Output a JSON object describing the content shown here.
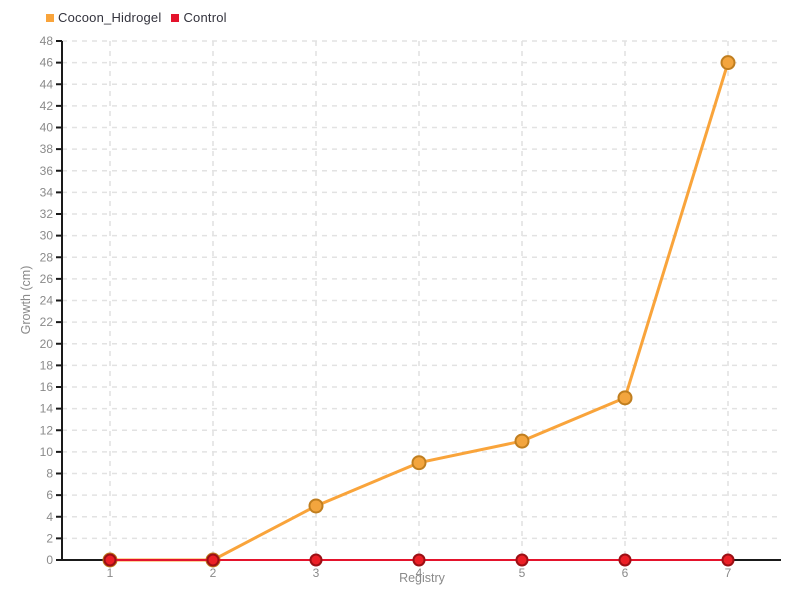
{
  "chart_data": {
    "type": "line",
    "title": "",
    "xlabel": "Registry",
    "ylabel": "Growth (cm)",
    "x": [
      1,
      2,
      3,
      4,
      5,
      6,
      7
    ],
    "xlim": [
      1,
      7
    ],
    "ylim": [
      0,
      48
    ],
    "ytick_step": 2,
    "grid": "dashed",
    "legend_position": "top-left",
    "series": [
      {
        "name": "Cocoon_Hidrogel",
        "values": [
          0,
          0,
          5,
          9,
          11,
          15,
          46
        ],
        "color": "#F9A43B",
        "marker_fill": "#F3A53E",
        "marker_stroke": "#C07E1F"
      },
      {
        "name": "Control",
        "values": [
          0,
          0,
          0,
          0,
          0,
          0,
          0
        ],
        "color": "#E4132C",
        "marker_fill": "#EC1F26",
        "marker_stroke": "#9C0F14"
      }
    ],
    "colors": {
      "axis": "#1a1a1a",
      "grid": "#e2e2e2",
      "tick_text": "#8a8a8a",
      "legend_text": "#33333d",
      "background": "#ffffff"
    }
  }
}
